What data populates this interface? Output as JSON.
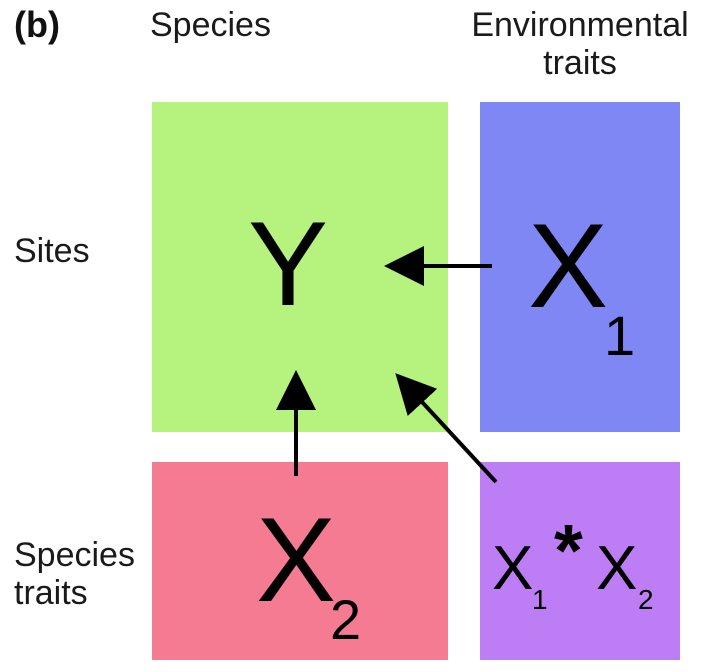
{
  "panel_label": "(b)",
  "column_headers": {
    "species": "Species",
    "environmental_traits": [
      "Environmental",
      "traits"
    ]
  },
  "row_headers": {
    "sites": "Sites",
    "species_traits": [
      "Species",
      "traits"
    ]
  },
  "matrices": {
    "y": {
      "symbol": "Y",
      "color": "#b6f27e"
    },
    "x1": {
      "symbol": "X",
      "subscript": "1",
      "color": "#7f87f5"
    },
    "x2": {
      "symbol": "X",
      "subscript": "2",
      "color": "#f57b93"
    },
    "x1x2": {
      "symbol_a": "X",
      "sub_a": "1",
      "operator": "*",
      "symbol_b": "X",
      "sub_b": "2",
      "color": "#bd7ef5"
    }
  },
  "arrow_color": "#000000"
}
